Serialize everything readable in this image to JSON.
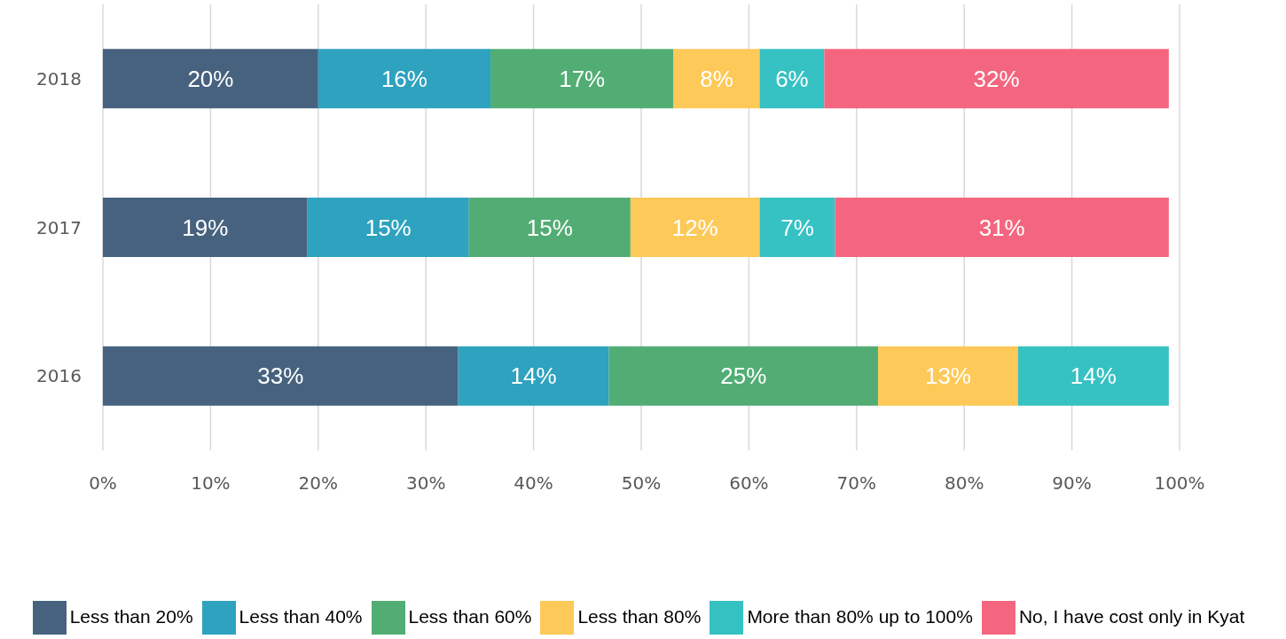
{
  "chart_data": {
    "type": "bar",
    "orientation": "horizontal",
    "stacked": true,
    "categories": [
      "2018",
      "2017",
      "2016"
    ],
    "series": [
      {
        "name": "Less than 20%",
        "color": "#47627f",
        "values": [
          20,
          19,
          33
        ],
        "value_labels": [
          "20%",
          "19%",
          "33%"
        ]
      },
      {
        "name": "Less than 40%",
        "color": "#2ea2bf",
        "values": [
          16,
          15,
          14
        ],
        "value_labels": [
          "16%",
          "15%",
          "14%"
        ]
      },
      {
        "name": "Less than 60%",
        "color": "#52ad74",
        "values": [
          17,
          15,
          25
        ],
        "value_labels": [
          "17%",
          "15%",
          "25%"
        ]
      },
      {
        "name": "Less than 80%",
        "color": "#fdc958",
        "values": [
          8,
          12,
          13
        ],
        "value_labels": [
          "8%",
          "12%",
          "13%"
        ]
      },
      {
        "name": "More than 80% up to 100%",
        "color": "#36c1c3",
        "values": [
          6,
          7,
          14
        ],
        "value_labels": [
          "6%",
          "7%",
          "14%"
        ]
      },
      {
        "name": "No, I have cost only in Kyat",
        "color": "#f4667f",
        "values": [
          32,
          31,
          null
        ],
        "value_labels": [
          "32%",
          "31%",
          null
        ]
      }
    ],
    "xlim": [
      0,
      100
    ],
    "xticks": [
      {
        "value": 0,
        "label": "0%"
      },
      {
        "value": 10,
        "label": "10%"
      },
      {
        "value": 20,
        "label": "20%"
      },
      {
        "value": 30,
        "label": "30%"
      },
      {
        "value": 40,
        "label": "40%"
      },
      {
        "value": 50,
        "label": "50%"
      },
      {
        "value": 60,
        "label": "60%"
      },
      {
        "value": 70,
        "label": "70%"
      },
      {
        "value": 80,
        "label": "80%"
      },
      {
        "value": 90,
        "label": "90%"
      },
      {
        "value": 100,
        "label": "100%"
      }
    ],
    "grid": "x",
    "legend": "bottom"
  }
}
